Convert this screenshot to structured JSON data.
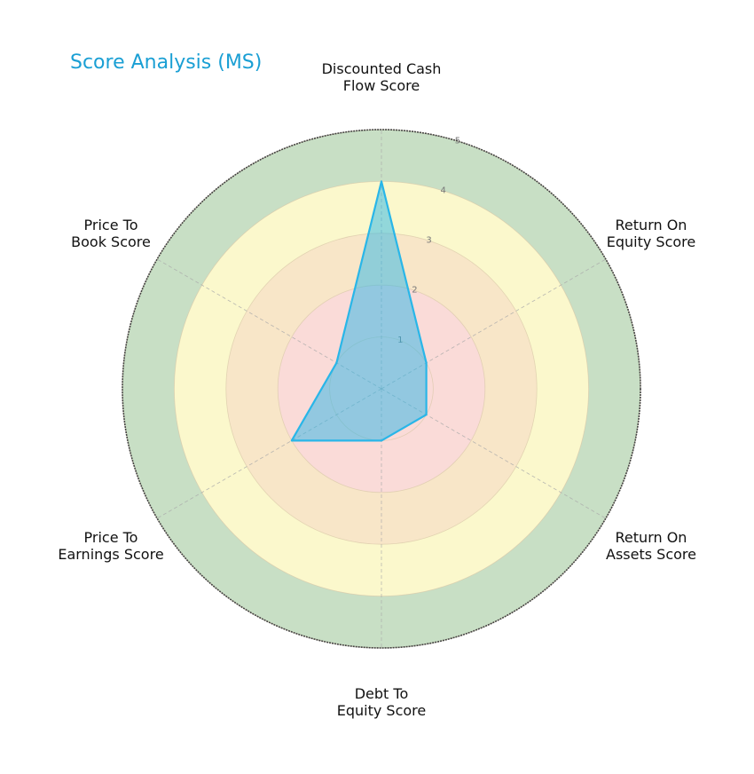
{
  "title": "Score Analysis (MS)",
  "chart_data": {
    "type": "radar",
    "title": "Score Analysis (MS)",
    "categories": [
      "Discounted Cash Flow Score",
      "Return On Equity Score",
      "Return On Assets Score",
      "Debt To Equity Score",
      "Price To Earnings Score",
      "Price To Book Score"
    ],
    "series": [
      {
        "name": "MS",
        "values": [
          4,
          1,
          1,
          1,
          2,
          1
        ],
        "color": "#29b6e8"
      }
    ],
    "rlim": [
      0,
      5
    ],
    "radial_ticks": [
      "1",
      "2",
      "3",
      "4",
      "5"
    ],
    "bands": [
      {
        "from": 0,
        "to": 2,
        "color": "#fadbd8"
      },
      {
        "from": 2,
        "to": 3,
        "color": "#f8e6c8"
      },
      {
        "from": 3,
        "to": 4,
        "color": "#fbf8cc"
      },
      {
        "from": 4,
        "to": 5,
        "color": "#c8dfc5"
      }
    ],
    "grid": true
  },
  "labels": {
    "dcf": [
      "Discounted Cash",
      "Flow Score"
    ],
    "roe": [
      "Return On",
      "Equity Score"
    ],
    "roa": [
      "Return On",
      "Assets Score"
    ],
    "dte": [
      "Debt To",
      "Equity Score"
    ],
    "pe": [
      "Price To",
      "Earnings Score"
    ],
    "pb": [
      "Price To",
      "Book Score"
    ]
  }
}
